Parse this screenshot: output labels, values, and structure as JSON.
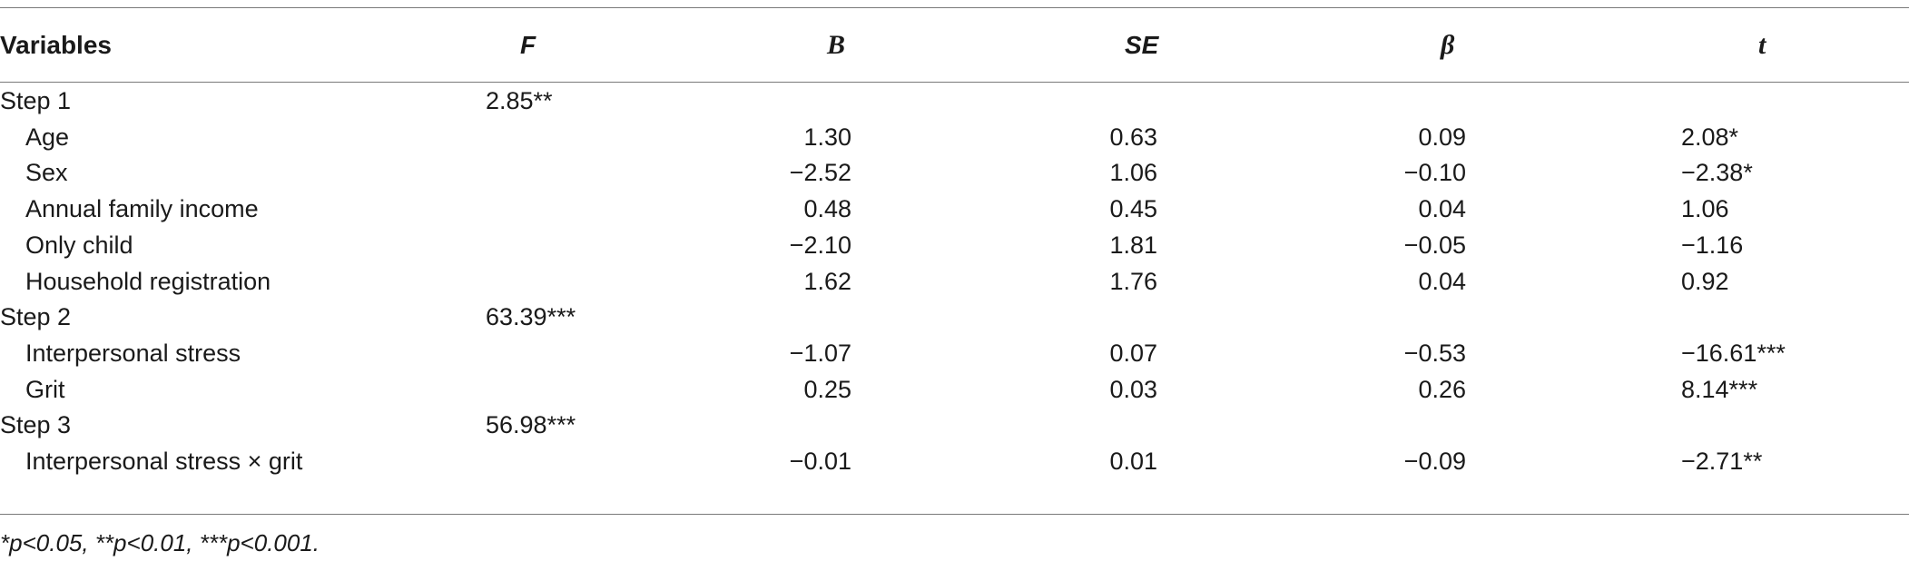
{
  "table": {
    "headers": [
      "Variables",
      "F",
      "B",
      "SE",
      "β",
      "t"
    ],
    "rows": [
      {
        "label": "Step 1",
        "indent": false,
        "F": "2.85**",
        "B": "",
        "SE": "",
        "beta": "",
        "t": ""
      },
      {
        "label": "Age",
        "indent": true,
        "F": "",
        "B": "1.30",
        "SE": "0.63",
        "beta": "0.09",
        "t": "2.08*"
      },
      {
        "label": "Sex",
        "indent": true,
        "F": "",
        "B": "−2.52",
        "SE": "1.06",
        "beta": "−0.10",
        "t": "−2.38*"
      },
      {
        "label": "Annual family income",
        "indent": true,
        "F": "",
        "B": "0.48",
        "SE": "0.45",
        "beta": "0.04",
        "t": "1.06"
      },
      {
        "label": "Only child",
        "indent": true,
        "F": "",
        "B": "−2.10",
        "SE": "1.81",
        "beta": "−0.05",
        "t": "−1.16"
      },
      {
        "label": "Household registration",
        "indent": true,
        "F": "",
        "B": "1.62",
        "SE": "1.76",
        "beta": "0.04",
        "t": "0.92"
      },
      {
        "label": "Step 2",
        "indent": false,
        "F": "63.39***",
        "B": "",
        "SE": "",
        "beta": "",
        "t": ""
      },
      {
        "label": "Interpersonal stress",
        "indent": true,
        "F": "",
        "B": "−1.07",
        "SE": "0.07",
        "beta": "−0.53",
        "t": "−16.61***"
      },
      {
        "label": "Grit",
        "indent": true,
        "F": "",
        "B": "0.25",
        "SE": "0.03",
        "beta": "0.26",
        "t": "8.14***"
      },
      {
        "label": "Step 3",
        "indent": false,
        "F": "56.98***",
        "B": "",
        "SE": "",
        "beta": "",
        "t": ""
      },
      {
        "label": "Interpersonal stress × grit",
        "indent": true,
        "F": "",
        "B": "−0.01",
        "SE": "0.01",
        "beta": "−0.09",
        "t": "−2.71**"
      }
    ]
  },
  "footnote": "*p<0.05, **p<0.01, ***p<0.001."
}
